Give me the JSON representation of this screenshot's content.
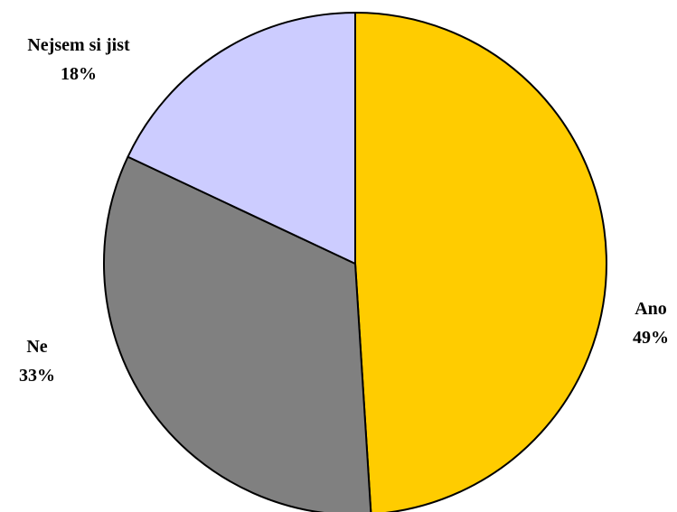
{
  "chart_data": {
    "type": "pie",
    "title": "",
    "start_angle_deg": 0,
    "direction": "clockwise",
    "legend": "none",
    "slices": [
      {
        "label": "Ano",
        "value": 49,
        "value_label": "49%",
        "color": "#FFCC00"
      },
      {
        "label": "Ne",
        "value": 33,
        "value_label": "33%",
        "color": "#808080"
      },
      {
        "label": "Nejsem si jist",
        "value": 18,
        "value_label": "18%",
        "color": "#CCCCFF"
      }
    ]
  }
}
